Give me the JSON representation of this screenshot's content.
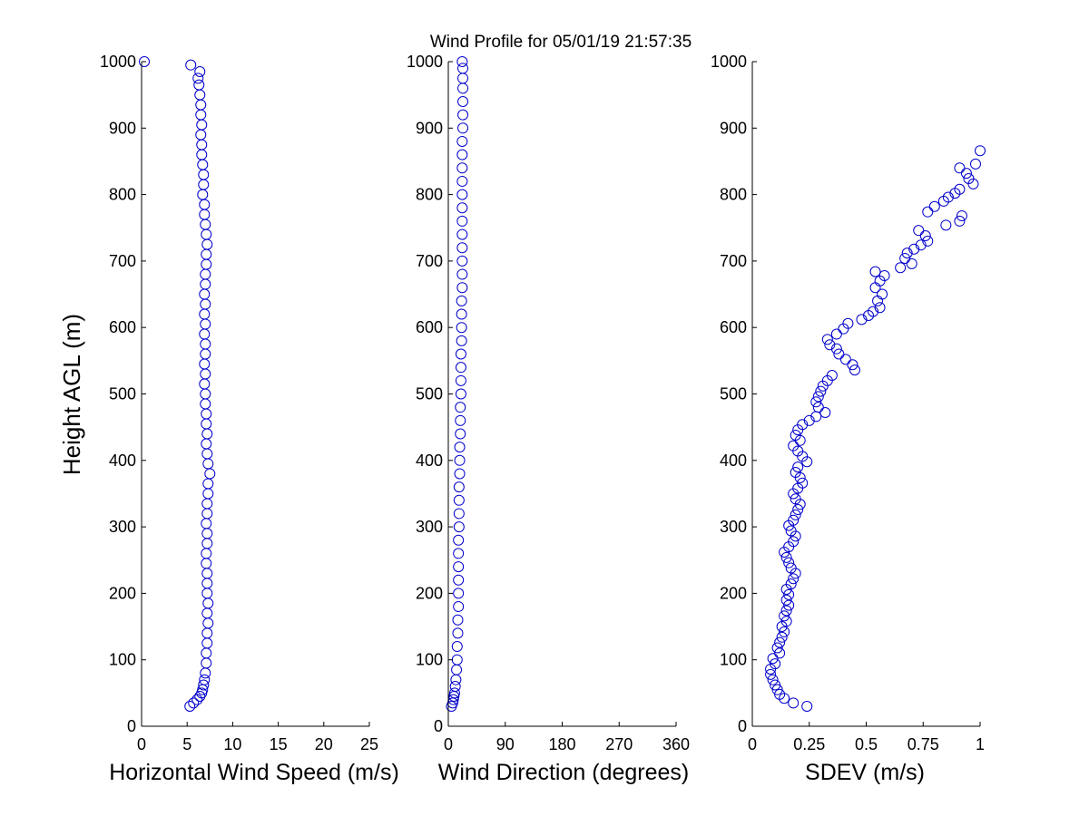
{
  "figure": {
    "title": "Wind Profile for  05/01/19 21:57:35",
    "ylabel": "Height AGL (m)"
  },
  "colors": {
    "marker": "#0000cc",
    "axis": "#000000",
    "background": "#ffffff"
  },
  "chart_data": [
    {
      "type": "scatter",
      "name": "speed",
      "xlabel": "Horizontal Wind Speed (m/s)",
      "ylabel": "Height AGL (m)",
      "xlim": [
        0,
        25
      ],
      "ylim": [
        0,
        1000
      ],
      "xticks": [
        0,
        5,
        10,
        15,
        20,
        25
      ],
      "xtick_labels": [
        "0",
        "5",
        "10",
        "15",
        "20",
        "25"
      ],
      "yticks": [
        0,
        100,
        200,
        300,
        400,
        500,
        600,
        700,
        800,
        900,
        1000
      ],
      "ytick_labels": [
        "0",
        "100",
        "200",
        "300",
        "400",
        "500",
        "600",
        "700",
        "800",
        "900",
        "1000"
      ],
      "marker": "circle-open",
      "points": [
        [
          5.3,
          30
        ],
        [
          5.7,
          35
        ],
        [
          6.1,
          40
        ],
        [
          6.4,
          45
        ],
        [
          6.6,
          50
        ],
        [
          6.7,
          55
        ],
        [
          6.8,
          62
        ],
        [
          6.9,
          70
        ],
        [
          7.0,
          80
        ],
        [
          7.1,
          95
        ],
        [
          7.1,
          110
        ],
        [
          7.2,
          125
        ],
        [
          7.2,
          140
        ],
        [
          7.3,
          155
        ],
        [
          7.2,
          170
        ],
        [
          7.3,
          185
        ],
        [
          7.2,
          200
        ],
        [
          7.2,
          215
        ],
        [
          7.2,
          230
        ],
        [
          7.1,
          245
        ],
        [
          7.1,
          260
        ],
        [
          7.2,
          275
        ],
        [
          7.2,
          290
        ],
        [
          7.1,
          305
        ],
        [
          7.2,
          320
        ],
        [
          7.2,
          335
        ],
        [
          7.3,
          350
        ],
        [
          7.3,
          365
        ],
        [
          7.5,
          380
        ],
        [
          7.3,
          395
        ],
        [
          7.2,
          410
        ],
        [
          7.1,
          425
        ],
        [
          7.2,
          440
        ],
        [
          7.1,
          455
        ],
        [
          7.1,
          470
        ],
        [
          7.0,
          485
        ],
        [
          7.0,
          500
        ],
        [
          6.9,
          515
        ],
        [
          7.0,
          530
        ],
        [
          6.9,
          545
        ],
        [
          7.0,
          560
        ],
        [
          7.0,
          575
        ],
        [
          6.9,
          590
        ],
        [
          7.0,
          605
        ],
        [
          6.9,
          620
        ],
        [
          7.0,
          635
        ],
        [
          6.9,
          650
        ],
        [
          7.0,
          665
        ],
        [
          7.0,
          680
        ],
        [
          7.1,
          695
        ],
        [
          7.1,
          710
        ],
        [
          7.2,
          725
        ],
        [
          7.1,
          740
        ],
        [
          7.0,
          755
        ],
        [
          6.9,
          770
        ],
        [
          6.9,
          785
        ],
        [
          6.7,
          800
        ],
        [
          6.8,
          815
        ],
        [
          6.8,
          830
        ],
        [
          6.7,
          845
        ],
        [
          6.6,
          860
        ],
        [
          6.6,
          875
        ],
        [
          6.5,
          890
        ],
        [
          6.6,
          905
        ],
        [
          6.5,
          920
        ],
        [
          6.5,
          935
        ],
        [
          6.4,
          950
        ],
        [
          6.3,
          965
        ],
        [
          6.2,
          975
        ],
        [
          6.4,
          985
        ],
        [
          5.4,
          995
        ],
        [
          0.3,
          1000
        ]
      ]
    },
    {
      "type": "scatter",
      "name": "direction",
      "xlabel": "Wind Direction (degrees)",
      "ylabel": "Height AGL (m)",
      "xlim": [
        0,
        360
      ],
      "ylim": [
        0,
        1000
      ],
      "xticks": [
        0,
        90,
        180,
        270,
        360
      ],
      "xtick_labels": [
        "0",
        "90",
        "180",
        "270",
        "360"
      ],
      "yticks": [
        0,
        100,
        200,
        300,
        400,
        500,
        600,
        700,
        800,
        900,
        1000
      ],
      "ytick_labels": [
        "0",
        "100",
        "200",
        "300",
        "400",
        "500",
        "600",
        "700",
        "800",
        "900",
        "1000"
      ],
      "marker": "circle-open",
      "points": [
        [
          5,
          30
        ],
        [
          7,
          35
        ],
        [
          8,
          40
        ],
        [
          9,
          45
        ],
        [
          10,
          50
        ],
        [
          11,
          60
        ],
        [
          12,
          70
        ],
        [
          13,
          85
        ],
        [
          14,
          100
        ],
        [
          14,
          120
        ],
        [
          15,
          140
        ],
        [
          15,
          160
        ],
        [
          16,
          180
        ],
        [
          16,
          200
        ],
        [
          16,
          220
        ],
        [
          16,
          240
        ],
        [
          16,
          260
        ],
        [
          16,
          280
        ],
        [
          17,
          300
        ],
        [
          17,
          320
        ],
        [
          17,
          340
        ],
        [
          17,
          360
        ],
        [
          18,
          380
        ],
        [
          18,
          400
        ],
        [
          18,
          420
        ],
        [
          19,
          440
        ],
        [
          19,
          460
        ],
        [
          19,
          480
        ],
        [
          20,
          500
        ],
        [
          20,
          520
        ],
        [
          20,
          540
        ],
        [
          20,
          560
        ],
        [
          21,
          580
        ],
        [
          21,
          600
        ],
        [
          21,
          620
        ],
        [
          21,
          640
        ],
        [
          22,
          660
        ],
        [
          22,
          680
        ],
        [
          22,
          700
        ],
        [
          22,
          720
        ],
        [
          22,
          740
        ],
        [
          22,
          760
        ],
        [
          22,
          780
        ],
        [
          22,
          800
        ],
        [
          22,
          820
        ],
        [
          22,
          840
        ],
        [
          22,
          860
        ],
        [
          22,
          880
        ],
        [
          23,
          900
        ],
        [
          23,
          920
        ],
        [
          23,
          940
        ],
        [
          23,
          960
        ],
        [
          23,
          975
        ],
        [
          23,
          990
        ],
        [
          22,
          1000
        ]
      ]
    },
    {
      "type": "scatter",
      "name": "sdev",
      "xlabel": "SDEV  (m/s)",
      "ylabel": "Height AGL (m)",
      "xlim": [
        0,
        1
      ],
      "ylim": [
        0,
        1000
      ],
      "xticks": [
        0,
        0.25,
        0.5,
        0.75,
        1
      ],
      "xtick_labels": [
        "0",
        "0.25",
        "0.5",
        "0.75",
        "1"
      ],
      "yticks": [
        0,
        100,
        200,
        300,
        400,
        500,
        600,
        700,
        800,
        900,
        1000
      ],
      "ytick_labels": [
        "0",
        "100",
        "200",
        "300",
        "400",
        "500",
        "600",
        "700",
        "800",
        "900",
        "1000"
      ],
      "marker": "circle-open",
      "points": [
        [
          0.24,
          30
        ],
        [
          0.18,
          35
        ],
        [
          0.14,
          42
        ],
        [
          0.12,
          48
        ],
        [
          0.11,
          55
        ],
        [
          0.1,
          62
        ],
        [
          0.09,
          70
        ],
        [
          0.08,
          78
        ],
        [
          0.08,
          86
        ],
        [
          0.1,
          94
        ],
        [
          0.09,
          102
        ],
        [
          0.12,
          110
        ],
        [
          0.11,
          118
        ],
        [
          0.12,
          126
        ],
        [
          0.13,
          134
        ],
        [
          0.14,
          142
        ],
        [
          0.13,
          150
        ],
        [
          0.15,
          158
        ],
        [
          0.14,
          166
        ],
        [
          0.15,
          174
        ],
        [
          0.16,
          182
        ],
        [
          0.15,
          190
        ],
        [
          0.16,
          198
        ],
        [
          0.15,
          206
        ],
        [
          0.17,
          214
        ],
        [
          0.18,
          222
        ],
        [
          0.19,
          230
        ],
        [
          0.17,
          238
        ],
        [
          0.16,
          246
        ],
        [
          0.15,
          254
        ],
        [
          0.14,
          262
        ],
        [
          0.16,
          270
        ],
        [
          0.18,
          278
        ],
        [
          0.19,
          286
        ],
        [
          0.17,
          294
        ],
        [
          0.16,
          302
        ],
        [
          0.18,
          310
        ],
        [
          0.19,
          318
        ],
        [
          0.2,
          326
        ],
        [
          0.21,
          334
        ],
        [
          0.19,
          342
        ],
        [
          0.18,
          350
        ],
        [
          0.2,
          358
        ],
        [
          0.22,
          366
        ],
        [
          0.21,
          374
        ],
        [
          0.19,
          382
        ],
        [
          0.2,
          390
        ],
        [
          0.24,
          398
        ],
        [
          0.22,
          406
        ],
        [
          0.2,
          414
        ],
        [
          0.18,
          422
        ],
        [
          0.21,
          430
        ],
        [
          0.19,
          438
        ],
        [
          0.2,
          446
        ],
        [
          0.22,
          454
        ],
        [
          0.25,
          460
        ],
        [
          0.28,
          466
        ],
        [
          0.32,
          472
        ],
        [
          0.29,
          480
        ],
        [
          0.28,
          488
        ],
        [
          0.29,
          496
        ],
        [
          0.3,
          504
        ],
        [
          0.31,
          512
        ],
        [
          0.33,
          520
        ],
        [
          0.35,
          528
        ],
        [
          0.45,
          536
        ],
        [
          0.44,
          544
        ],
        [
          0.41,
          552
        ],
        [
          0.38,
          560
        ],
        [
          0.37,
          568
        ],
        [
          0.34,
          574
        ],
        [
          0.33,
          582
        ],
        [
          0.37,
          590
        ],
        [
          0.4,
          598
        ],
        [
          0.42,
          606
        ],
        [
          0.48,
          612
        ],
        [
          0.51,
          618
        ],
        [
          0.53,
          624
        ],
        [
          0.56,
          630
        ],
        [
          0.55,
          640
        ],
        [
          0.57,
          650
        ],
        [
          0.54,
          660
        ],
        [
          0.56,
          670
        ],
        [
          0.58,
          678
        ],
        [
          0.54,
          684
        ],
        [
          0.65,
          690
        ],
        [
          0.7,
          696
        ],
        [
          0.67,
          704
        ],
        [
          0.68,
          712
        ],
        [
          0.71,
          718
        ],
        [
          0.74,
          724
        ],
        [
          0.77,
          730
        ],
        [
          0.76,
          738
        ],
        [
          0.73,
          746
        ],
        [
          0.85,
          754
        ],
        [
          0.91,
          760
        ],
        [
          0.92,
          768
        ],
        [
          0.77,
          774
        ],
        [
          0.8,
          782
        ],
        [
          0.84,
          790
        ],
        [
          0.86,
          796
        ],
        [
          0.89,
          802
        ],
        [
          0.91,
          808
        ],
        [
          0.97,
          816
        ],
        [
          0.95,
          824
        ],
        [
          0.94,
          832
        ],
        [
          0.91,
          840
        ],
        [
          0.98,
          846
        ],
        [
          1.0,
          866
        ]
      ]
    }
  ]
}
